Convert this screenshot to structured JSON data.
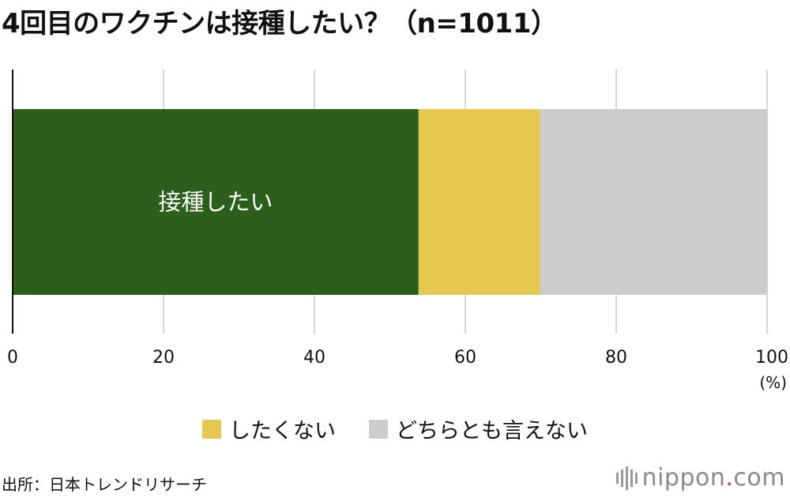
{
  "chart_data": {
    "type": "bar",
    "orientation": "horizontal-stacked",
    "title": "4回目のワクチンは接種したい？（n=1011）",
    "xlim": [
      0,
      100
    ],
    "x_ticks": [
      "0",
      "20",
      "40",
      "60",
      "80",
      "100"
    ],
    "x_unit": "(%)",
    "grid": true,
    "legend_position": "bottom",
    "series": [
      {
        "name": "接種したい",
        "value": 53.8,
        "color": "#2b5f1b",
        "label": "接種したい"
      },
      {
        "name": "したくない",
        "value": 16.1,
        "color": "#e5c84f"
      },
      {
        "name": "どちらとも言えない",
        "value": 30.1,
        "color": "#cccccc"
      }
    ]
  },
  "legend": [
    {
      "label": "したくない",
      "color": "#e5c84f"
    },
    {
      "label": "どちらとも言えない",
      "color": "#cccccc"
    }
  ],
  "source": "出所：日本トレンドリサーチ",
  "brand": {
    "name": "nippon",
    "dot": ".",
    "tld": "com"
  }
}
